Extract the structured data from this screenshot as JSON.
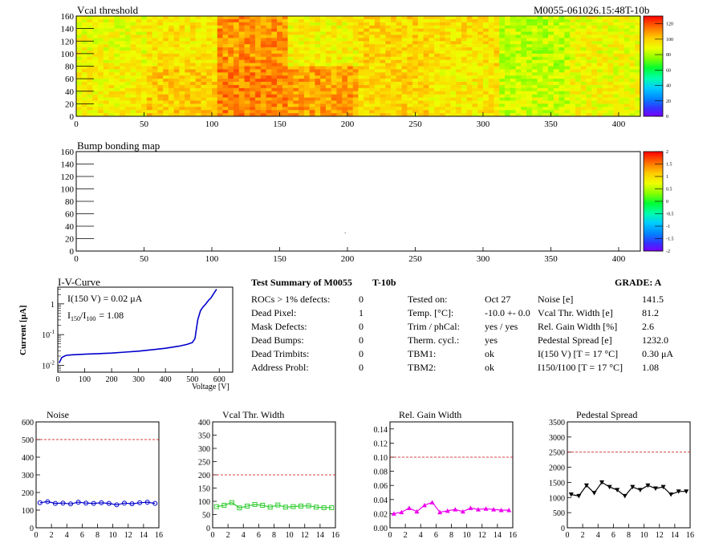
{
  "header": {
    "module_id": "M0055-061026.15:48T-10b"
  },
  "vcal_map": {
    "title": "Vcal threshold",
    "x_ticks": [
      "0",
      "50",
      "100",
      "150",
      "200",
      "250",
      "300",
      "350",
      "400"
    ],
    "y_ticks": [
      "0",
      "20",
      "40",
      "60",
      "80",
      "100",
      "120",
      "140",
      "160"
    ],
    "colorbar_ticks": [
      "0",
      "20",
      "40",
      "60",
      "80",
      "100",
      "120"
    ]
  },
  "bump_map": {
    "title": "Bump bonding map",
    "x_ticks": [
      "0",
      "50",
      "100",
      "150",
      "200",
      "250",
      "300",
      "350",
      "400"
    ],
    "y_ticks": [
      "0",
      "20",
      "40",
      "60",
      "80",
      "100",
      "120",
      "140",
      "160"
    ],
    "colorbar_ticks": [
      "-2",
      "-1.5",
      "-1",
      "-0.5",
      "0",
      "0.5",
      "1",
      "1.5",
      "2"
    ]
  },
  "iv_curve": {
    "title": "I-V-Curve",
    "ylabel": "Current [μA]",
    "xlabel": "Voltage [V]",
    "x_ticks": [
      "0",
      "100",
      "200",
      "300",
      "400",
      "500",
      "600"
    ],
    "annot1": "I(150 V) = 0.02 μA",
    "annot2_prefix": "I",
    "annot2_sub1": "150",
    "annot2_mid": "/I",
    "annot2_sub2": "100",
    "annot2_value": "=  1.08"
  },
  "summary": {
    "title": "Test Summary of M0055",
    "tag": "T-10b",
    "grade": "GRADE:  A",
    "left_rows": [
      {
        "label": "ROCs > 1% defects:",
        "value": "0"
      },
      {
        "label": "Dead Pixel:",
        "value": "1"
      },
      {
        "label": "Mask Defects:",
        "value": "0"
      },
      {
        "label": "Dead Bumps:",
        "value": "0"
      },
      {
        "label": "Dead Trimbits:",
        "value": "0"
      },
      {
        "label": "Address Probl:",
        "value": "0"
      }
    ],
    "mid_rows": [
      {
        "label": "Tested on:",
        "value": "Oct 27"
      },
      {
        "label": "Temp. [°C]:",
        "value": "-10.0 +- 0.0"
      },
      {
        "label": "Trim / phCal:",
        "value": "yes / yes"
      },
      {
        "label": "Therm. cycl.:",
        "value": "yes"
      },
      {
        "label": "TBM1:",
        "value": "ok"
      },
      {
        "label": "TBM2:",
        "value": "ok"
      }
    ],
    "right_rows": [
      {
        "label": "Noise [e]",
        "value": "141.5"
      },
      {
        "label": "Vcal Thr. Width [e]",
        "value": "81.2"
      },
      {
        "label": "Rel. Gain Width [%]",
        "value": "2.6"
      },
      {
        "label": "Pedestal Spread [e]",
        "value": "1232.0"
      },
      {
        "label": "I(150 V) [T = 17 °C]",
        "value": "0.30 μA"
      },
      {
        "label": "I150/I100  [T = 17 °C]",
        "value": "1.08"
      }
    ]
  },
  "colors": {
    "noise": "#0000cc",
    "vcal": "#33cc33",
    "gain": "#ee00ee",
    "pedestal": "#000000",
    "iv": "#0000cc",
    "limit": "#cc0000"
  },
  "chart_data": [
    {
      "type": "heatmap",
      "title": "Vcal threshold",
      "xlim": [
        0,
        416
      ],
      "ylim": [
        0,
        160
      ],
      "zlim": [
        0,
        130
      ],
      "roc_grid": {
        "columns": 8,
        "rows": 2
      },
      "roc_mean_levels": [
        [
          90,
          95,
          110,
          92,
          98,
          96,
          82,
          90
        ],
        [
          93,
          100,
          112,
          108,
          98,
          94,
          84,
          90
        ]
      ],
      "roc_level_order": "rows: [top, bottom] ; columns: x 0..416"
    },
    {
      "type": "heatmap",
      "title": "Bump bonding map",
      "xlim": [
        0,
        416
      ],
      "ylim": [
        0,
        160
      ],
      "zlim": [
        -2,
        2
      ],
      "points": [
        {
          "x": 198,
          "y": 30
        }
      ]
    },
    {
      "type": "line",
      "title": "I-V-Curve",
      "xlabel": "Voltage [V]",
      "ylabel": "Current [μA]",
      "xlim": [
        0,
        650
      ],
      "ylim": [
        0.006,
        3.5
      ],
      "y_log": true,
      "series": [
        {
          "x": [
            5,
            15,
            30,
            50,
            100,
            150,
            200,
            250,
            300,
            350,
            400,
            450,
            480,
            500,
            510,
            515,
            520,
            530,
            540,
            550,
            560,
            570,
            580,
            590
          ],
          "y": [
            0.012,
            0.018,
            0.021,
            0.022,
            0.023,
            0.024,
            0.025,
            0.027,
            0.029,
            0.032,
            0.036,
            0.042,
            0.048,
            0.055,
            0.075,
            0.15,
            0.3,
            0.6,
            0.8,
            1.0,
            1.3,
            1.6,
            2.2,
            3.0
          ]
        }
      ]
    },
    {
      "type": "line",
      "title": "Noise",
      "xlim": [
        0,
        16
      ],
      "ylim": [
        0,
        600
      ],
      "x_ticks": [
        0,
        2,
        4,
        6,
        8,
        10,
        12,
        14,
        16
      ],
      "y_ticks": [
        0,
        100,
        200,
        300,
        400,
        500,
        600
      ],
      "limit": 500,
      "series": [
        {
          "x": [
            0,
            1,
            2,
            3,
            4,
            5,
            6,
            7,
            8,
            9,
            10,
            11,
            12,
            13,
            14,
            15
          ],
          "y": [
            142,
            148,
            138,
            140,
            135,
            145,
            140,
            138,
            142,
            138,
            130,
            140,
            136,
            142,
            145,
            138
          ]
        }
      ]
    },
    {
      "type": "line",
      "title": "Vcal Thr. Width",
      "xlim": [
        0,
        16
      ],
      "ylim": [
        0,
        400
      ],
      "x_ticks": [
        0,
        2,
        4,
        6,
        8,
        10,
        12,
        14,
        16
      ],
      "y_ticks": [
        0,
        50,
        100,
        150,
        200,
        250,
        300,
        350,
        400
      ],
      "limit": 200,
      "series": [
        {
          "x": [
            0,
            1,
            2,
            3,
            4,
            5,
            6,
            7,
            8,
            9,
            10,
            11,
            12,
            13,
            14,
            15
          ],
          "y": [
            80,
            85,
            95,
            75,
            82,
            88,
            85,
            78,
            86,
            78,
            80,
            82,
            83,
            78,
            76,
            76
          ]
        }
      ]
    },
    {
      "type": "line",
      "title": "Rel. Gain Width",
      "xlim": [
        0,
        16
      ],
      "ylim": [
        0,
        0.15
      ],
      "x_ticks": [
        0,
        2,
        4,
        6,
        8,
        10,
        12,
        14,
        16
      ],
      "y_ticks": [
        0,
        0.02,
        0.04,
        0.06,
        0.08,
        0.1,
        0.12,
        0.14
      ],
      "limit": 0.1,
      "series": [
        {
          "x": [
            0,
            1,
            2,
            3,
            4,
            5,
            6,
            7,
            8,
            9,
            10,
            11,
            12,
            13,
            14,
            15
          ],
          "y": [
            0.02,
            0.022,
            0.028,
            0.023,
            0.032,
            0.036,
            0.022,
            0.024,
            0.026,
            0.023,
            0.028,
            0.026,
            0.027,
            0.026,
            0.025,
            0.025
          ]
        }
      ]
    },
    {
      "type": "line",
      "title": "Pedestal Spread",
      "xlim": [
        0,
        16
      ],
      "ylim": [
        0,
        3500
      ],
      "x_ticks": [
        0,
        2,
        4,
        6,
        8,
        10,
        12,
        14,
        16
      ],
      "y_ticks": [
        0,
        500,
        1000,
        1500,
        2000,
        2500,
        3000,
        3500
      ],
      "limit": 2500,
      "series": [
        {
          "x": [
            0,
            1,
            2,
            3,
            4,
            5,
            6,
            7,
            8,
            9,
            10,
            11,
            12,
            13,
            14,
            15
          ],
          "y": [
            1100,
            1050,
            1400,
            1150,
            1500,
            1350,
            1250,
            1050,
            1350,
            1250,
            1400,
            1300,
            1350,
            1100,
            1200,
            1200
          ]
        }
      ]
    }
  ]
}
